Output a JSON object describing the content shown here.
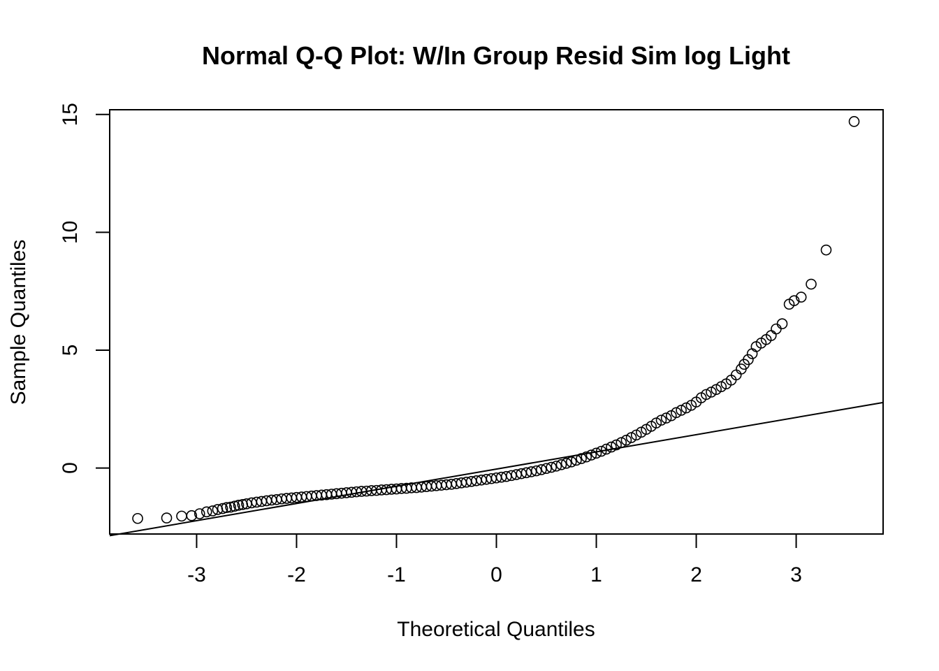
{
  "chart_data": {
    "type": "scatter",
    "title": "Normal Q-Q Plot: W/In Group Resid Sim log Light",
    "xlabel": "Theoretical Quantiles",
    "ylabel": "Sample Quantiles",
    "xlim": [
      -3.87,
      3.87
    ],
    "ylim": [
      -2.8,
      15.2
    ],
    "x_ticks": [
      -3,
      -2,
      -1,
      0,
      1,
      2,
      3
    ],
    "x_tick_labels": [
      "-3",
      "-2",
      "-1",
      "0",
      "1",
      "2",
      "3"
    ],
    "y_ticks": [
      0,
      5,
      10,
      15
    ],
    "y_tick_labels": [
      "0",
      "5",
      "10",
      "15"
    ],
    "grid": false,
    "legend": "none",
    "reference_line": {
      "x": [
        -3.87,
        3.87
      ],
      "y": [
        -2.87,
        2.78
      ]
    },
    "points": [
      [
        -3.59,
        -2.14
      ],
      [
        -3.3,
        -2.12
      ],
      [
        -3.15,
        -2.04
      ],
      [
        -3.05,
        -2.02
      ],
      [
        -2.97,
        -1.94
      ],
      [
        -2.9,
        -1.86
      ],
      [
        -2.84,
        -1.82
      ],
      [
        -2.79,
        -1.76
      ],
      [
        -2.74,
        -1.72
      ],
      [
        -2.7,
        -1.68
      ],
      [
        -2.66,
        -1.66
      ],
      [
        -2.62,
        -1.62
      ],
      [
        -2.58,
        -1.58
      ],
      [
        -2.54,
        -1.55
      ],
      [
        -2.5,
        -1.52
      ],
      [
        -2.45,
        -1.48
      ],
      [
        -2.4,
        -1.45
      ],
      [
        -2.35,
        -1.42
      ],
      [
        -2.3,
        -1.39
      ],
      [
        -2.25,
        -1.36
      ],
      [
        -2.2,
        -1.34
      ],
      [
        -2.15,
        -1.31
      ],
      [
        -2.1,
        -1.29
      ],
      [
        -2.05,
        -1.27
      ],
      [
        -2.0,
        -1.25
      ],
      [
        -1.95,
        -1.23
      ],
      [
        -1.9,
        -1.21
      ],
      [
        -1.85,
        -1.19
      ],
      [
        -1.8,
        -1.17
      ],
      [
        -1.75,
        -1.15
      ],
      [
        -1.7,
        -1.13
      ],
      [
        -1.65,
        -1.11
      ],
      [
        -1.6,
        -1.09
      ],
      [
        -1.55,
        -1.07
      ],
      [
        -1.5,
        -1.05
      ],
      [
        -1.45,
        -1.03
      ],
      [
        -1.4,
        -1.01
      ],
      [
        -1.35,
        -0.99
      ],
      [
        -1.3,
        -0.98
      ],
      [
        -1.25,
        -0.96
      ],
      [
        -1.2,
        -0.95
      ],
      [
        -1.15,
        -0.93
      ],
      [
        -1.1,
        -0.92
      ],
      [
        -1.05,
        -0.9
      ],
      [
        -1.0,
        -0.89
      ],
      [
        -0.95,
        -0.87
      ],
      [
        -0.9,
        -0.86
      ],
      [
        -0.85,
        -0.84
      ],
      [
        -0.8,
        -0.83
      ],
      [
        -0.75,
        -0.81
      ],
      [
        -0.7,
        -0.79
      ],
      [
        -0.65,
        -0.77
      ],
      [
        -0.6,
        -0.75
      ],
      [
        -0.55,
        -0.73
      ],
      [
        -0.5,
        -0.71
      ],
      [
        -0.45,
        -0.69
      ],
      [
        -0.4,
        -0.66
      ],
      [
        -0.35,
        -0.63
      ],
      [
        -0.3,
        -0.6
      ],
      [
        -0.25,
        -0.57
      ],
      [
        -0.2,
        -0.54
      ],
      [
        -0.15,
        -0.51
      ],
      [
        -0.1,
        -0.48
      ],
      [
        -0.05,
        -0.45
      ],
      [
        0.0,
        -0.42
      ],
      [
        0.05,
        -0.39
      ],
      [
        0.1,
        -0.36
      ],
      [
        0.15,
        -0.32
      ],
      [
        0.2,
        -0.28
      ],
      [
        0.25,
        -0.24
      ],
      [
        0.3,
        -0.2
      ],
      [
        0.35,
        -0.16
      ],
      [
        0.4,
        -0.12
      ],
      [
        0.45,
        -0.07
      ],
      [
        0.5,
        -0.02
      ],
      [
        0.55,
        0.03
      ],
      [
        0.6,
        0.08
      ],
      [
        0.65,
        0.14
      ],
      [
        0.7,
        0.2
      ],
      [
        0.75,
        0.26
      ],
      [
        0.8,
        0.33
      ],
      [
        0.85,
        0.4
      ],
      [
        0.9,
        0.47
      ],
      [
        0.95,
        0.55
      ],
      [
        1.0,
        0.63
      ],
      [
        1.05,
        0.71
      ],
      [
        1.1,
        0.8
      ],
      [
        1.15,
        0.89
      ],
      [
        1.2,
        0.98
      ],
      [
        1.25,
        1.08
      ],
      [
        1.3,
        1.18
      ],
      [
        1.35,
        1.29
      ],
      [
        1.4,
        1.4
      ],
      [
        1.45,
        1.52
      ],
      [
        1.5,
        1.64
      ],
      [
        1.55,
        1.77
      ],
      [
        1.6,
        1.91
      ],
      [
        1.65,
        2.03
      ],
      [
        1.7,
        2.12
      ],
      [
        1.75,
        2.22
      ],
      [
        1.8,
        2.35
      ],
      [
        1.85,
        2.45
      ],
      [
        1.9,
        2.55
      ],
      [
        1.95,
        2.66
      ],
      [
        2.0,
        2.8
      ],
      [
        2.05,
        2.98
      ],
      [
        2.1,
        3.12
      ],
      [
        2.15,
        3.22
      ],
      [
        2.2,
        3.33
      ],
      [
        2.25,
        3.45
      ],
      [
        2.3,
        3.57
      ],
      [
        2.35,
        3.73
      ],
      [
        2.4,
        3.95
      ],
      [
        2.45,
        4.2
      ],
      [
        2.48,
        4.4
      ],
      [
        2.52,
        4.6
      ],
      [
        2.56,
        4.85
      ],
      [
        2.6,
        5.15
      ],
      [
        2.65,
        5.3
      ],
      [
        2.7,
        5.45
      ],
      [
        2.75,
        5.62
      ],
      [
        2.8,
        5.9
      ],
      [
        2.86,
        6.12
      ],
      [
        2.93,
        6.95
      ],
      [
        2.98,
        7.1
      ],
      [
        3.05,
        7.25
      ],
      [
        3.15,
        7.8
      ],
      [
        3.3,
        9.25
      ],
      [
        3.58,
        14.7
      ]
    ]
  }
}
